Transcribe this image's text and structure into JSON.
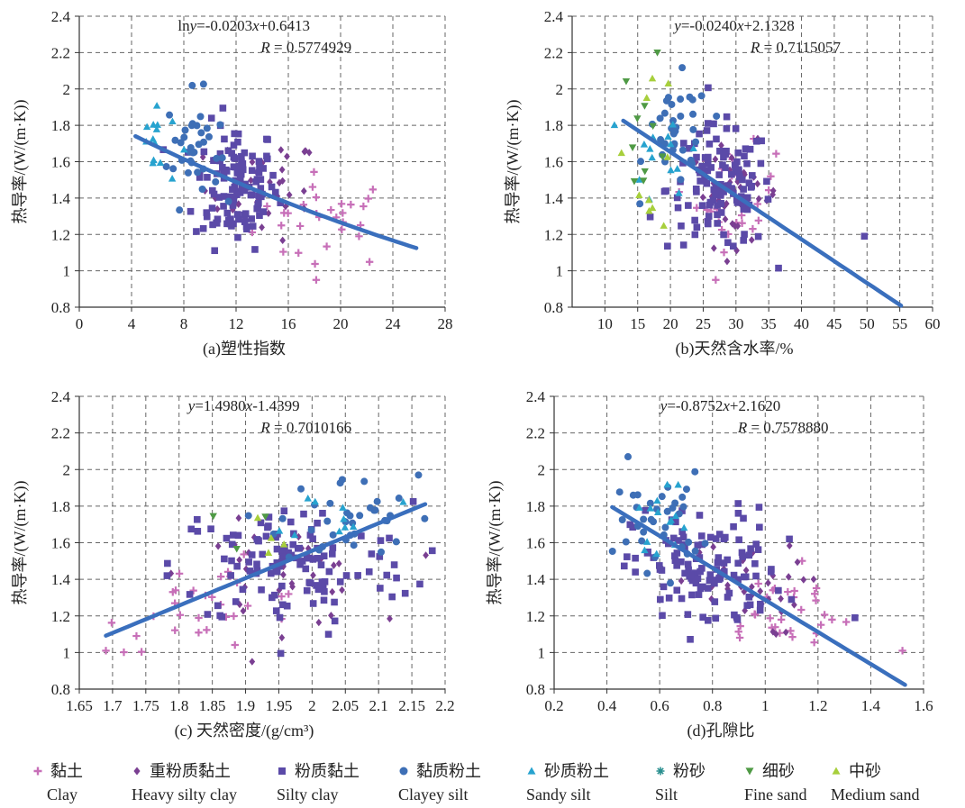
{
  "colors": {
    "clay": "#c76fb8",
    "heavy_silty_clay": "#7a3f92",
    "silty_clay": "#5b4aa8",
    "clayey_silt": "#3e6fb6",
    "sandy_silt": "#27a3cf",
    "silt": "#2a8f8f",
    "fine_sand": "#4f9a45",
    "medium_sand": "#a7cf3c",
    "fit_line": "#3a6fbd",
    "grid": "#666666"
  },
  "legend": [
    {
      "key": "clay",
      "cn": "黏土",
      "en": "Clay",
      "marker": "plus"
    },
    {
      "key": "heavy_silty_clay",
      "cn": "重粉质黏土",
      "en": "Heavy silty clay",
      "marker": "diamond"
    },
    {
      "key": "silty_clay",
      "cn": "粉质黏土",
      "en": "Silty clay",
      "marker": "square"
    },
    {
      "key": "clayey_silt",
      "cn": "黏质粉土",
      "en": "Clayey silt",
      "marker": "circle"
    },
    {
      "key": "sandy_silt",
      "cn": "砂质粉土",
      "en": "Sandy silt",
      "marker": "triangle"
    },
    {
      "key": "silt",
      "cn": "粉砂",
      "en": "Silt",
      "marker": "star"
    },
    {
      "key": "fine_sand",
      "cn": "细砂",
      "en": "Fine sand",
      "marker": "triangle-down"
    },
    {
      "key": "medium_sand",
      "cn": "中砂",
      "en": "Medium sand",
      "marker": "triangle"
    }
  ],
  "chart_data": [
    {
      "type": "scatter",
      "xlabel": "(a)塑性指数",
      "ylabel": "热导率/(W/(m·K))",
      "xlim": [
        0,
        28
      ],
      "ylim": [
        0.8,
        2.4
      ],
      "xticks": [
        "0",
        "4",
        "8",
        "12",
        "16",
        "20",
        "24",
        "28"
      ],
      "yticks": [
        "0.8",
        "1",
        "1.2",
        "1.4",
        "1.6",
        "1.8",
        "2",
        "2.2",
        "2.4"
      ],
      "equation": {
        "prefix": "ln",
        "y": "y",
        "mid": "=-0.0203",
        "x": "x",
        "suffix": "+0.6413"
      },
      "r_text": {
        "r": "R",
        "value": " = 0.5774929"
      },
      "fit": {
        "kind": "exp",
        "a": -0.0203,
        "b": 0.6413,
        "x_range": [
          4.3,
          25.8
        ]
      },
      "series": [
        {
          "key": "clay",
          "center": [
            19.0,
            1.28
          ],
          "spread": [
            2.8,
            0.13
          ],
          "n": 30
        },
        {
          "key": "heavy_silty_clay",
          "center": [
            14.0,
            1.45
          ],
          "spread": [
            2.2,
            0.14
          ],
          "n": 35
        },
        {
          "key": "silty_clay",
          "center": [
            12.0,
            1.47
          ],
          "spread": [
            1.6,
            0.17
          ],
          "n": 120
        },
        {
          "key": "clayey_silt",
          "center": [
            8.7,
            1.68
          ],
          "spread": [
            1.0,
            0.15
          ],
          "n": 35
        },
        {
          "key": "sandy_silt",
          "center": [
            5.8,
            1.7
          ],
          "spread": [
            0.8,
            0.12
          ],
          "n": 14
        }
      ]
    },
    {
      "type": "scatter",
      "xlabel": "(b)天然含水率/%",
      "ylabel": "热导率/(W/(m·K))",
      "xlim": [
        5,
        60
      ],
      "ylim": [
        0.8,
        2.4
      ],
      "xticks": [
        "10",
        "15",
        "20",
        "25",
        "30",
        "35",
        "40",
        "45",
        "50",
        "55",
        "60"
      ],
      "yticks": [
        "0.8",
        "1",
        "1.2",
        "1.4",
        "1.6",
        "1.8",
        "2",
        "2.2",
        "2.4"
      ],
      "equation": {
        "prefix": "",
        "y": "y",
        "mid": "=-0.0240",
        "x": "x",
        "suffix": "+2.1328"
      },
      "r_text": {
        "r": "R",
        "value": " = 0.7115057"
      },
      "fit": {
        "kind": "linear",
        "a": -0.024,
        "b": 2.1328,
        "x_range": [
          12.8,
          55.2
        ]
      },
      "series": [
        {
          "key": "clay",
          "center": [
            30.0,
            1.4
          ],
          "spread": [
            3.0,
            0.14
          ],
          "n": 30
        },
        {
          "key": "heavy_silty_clay",
          "center": [
            30.0,
            1.42
          ],
          "spread": [
            3.5,
            0.14
          ],
          "n": 35
        },
        {
          "key": "silty_clay",
          "center": [
            27.5,
            1.45
          ],
          "spread": [
            4.0,
            0.17
          ],
          "n": 120
        },
        {
          "key": "clayey_silt",
          "center": [
            21.0,
            1.75
          ],
          "spread": [
            2.5,
            0.15
          ],
          "n": 35
        },
        {
          "key": "sandy_silt",
          "center": [
            20.0,
            1.65
          ],
          "spread": [
            3.0,
            0.15
          ],
          "n": 14
        },
        {
          "key": "fine_sand",
          "center": [
            16.0,
            1.8
          ],
          "spread": [
            1.8,
            0.22
          ],
          "n": 10
        },
        {
          "key": "medium_sand",
          "center": [
            17.0,
            1.7
          ],
          "spread": [
            2.0,
            0.25
          ],
          "n": 10
        }
      ],
      "extra_points": [
        {
          "key": "silty_clay",
          "x": 49.6,
          "y": 1.19
        }
      ]
    },
    {
      "type": "scatter",
      "xlabel": "(c) 天然密度/(g/cm³)",
      "ylabel": "热导率/(W/(m·K))",
      "xlim": [
        1.65,
        2.2
      ],
      "ylim": [
        0.8,
        2.4
      ],
      "xticks": [
        "1.65",
        "1.7",
        "1.75",
        "1.8",
        "1.85",
        "1.9",
        "1.95",
        "2",
        "2.05",
        "2.1",
        "2.15",
        "2.2"
      ],
      "yticks": [
        "0.8",
        "1",
        "1.2",
        "1.4",
        "1.6",
        "1.8",
        "2",
        "2.2",
        "2.4"
      ],
      "equation": {
        "prefix": "",
        "y": "y",
        "mid": "=1.4980",
        "x": "x",
        "suffix": "-1.4399"
      },
      "r_text": {
        "r": "R",
        "value": " = 0.7010166"
      },
      "fit": {
        "kind": "linear",
        "a": 1.498,
        "b": -1.4399,
        "x_range": [
          1.69,
          2.17
        ]
      },
      "series": [
        {
          "key": "clay",
          "center": [
            1.85,
            1.25
          ],
          "spread": [
            0.08,
            0.12
          ],
          "n": 30
        },
        {
          "key": "heavy_silty_clay",
          "center": [
            1.95,
            1.42
          ],
          "spread": [
            0.07,
            0.14
          ],
          "n": 35
        },
        {
          "key": "silty_clay",
          "center": [
            1.97,
            1.48
          ],
          "spread": [
            0.09,
            0.17
          ],
          "n": 120
        },
        {
          "key": "clayey_silt",
          "center": [
            2.05,
            1.72
          ],
          "spread": [
            0.05,
            0.12
          ],
          "n": 35
        },
        {
          "key": "sandy_silt",
          "center": [
            2.05,
            1.76
          ],
          "spread": [
            0.04,
            0.08
          ],
          "n": 10
        },
        {
          "key": "fine_sand",
          "center": [
            1.93,
            1.68
          ],
          "spread": [
            0.03,
            0.06
          ],
          "n": 3
        },
        {
          "key": "medium_sand",
          "center": [
            1.92,
            1.7
          ],
          "spread": [
            0.04,
            0.08
          ],
          "n": 4
        }
      ],
      "extra_points": [
        {
          "key": "clayey_silt",
          "x": 2.16,
          "y": 1.97
        },
        {
          "key": "clay",
          "x": 1.69,
          "y": 1.01
        }
      ]
    },
    {
      "type": "scatter",
      "xlabel": "(d)孔隙比",
      "ylabel": "热导率/(W/(m·K))",
      "xlim": [
        0.2,
        1.6
      ],
      "ylim": [
        0.8,
        2.4
      ],
      "xticks": [
        "0.2",
        "0.4",
        "0.6",
        "0.8",
        "1",
        "1.2",
        "1.4",
        "1.6"
      ],
      "yticks": [
        "0.8",
        "1",
        "1.2",
        "1.4",
        "1.6",
        "1.8",
        "2",
        "2.2",
        "2.4"
      ],
      "equation": {
        "prefix": "",
        "y": "y",
        "mid": "=-0.8752",
        "x": "x",
        "suffix": "+2.1620"
      },
      "r_text": {
        "r": "R",
        "value": " = 0.7578880"
      },
      "fit": {
        "kind": "linear",
        "a": -0.8752,
        "b": 2.162,
        "x_range": [
          0.42,
          1.53
        ]
      },
      "series": [
        {
          "key": "clay",
          "center": [
            1.05,
            1.22
          ],
          "spread": [
            0.14,
            0.12
          ],
          "n": 30
        },
        {
          "key": "heavy_silty_clay",
          "center": [
            0.9,
            1.35
          ],
          "spread": [
            0.12,
            0.13
          ],
          "n": 35
        },
        {
          "key": "silty_clay",
          "center": [
            0.78,
            1.45
          ],
          "spread": [
            0.14,
            0.17
          ],
          "n": 120
        },
        {
          "key": "clayey_silt",
          "center": [
            0.6,
            1.72
          ],
          "spread": [
            0.08,
            0.13
          ],
          "n": 35
        },
        {
          "key": "sandy_silt",
          "center": [
            0.62,
            1.75
          ],
          "spread": [
            0.05,
            0.1
          ],
          "n": 14
        }
      ],
      "extra_points": [
        {
          "key": "clayey_silt",
          "x": 0.48,
          "y": 2.07
        },
        {
          "key": "silty_clay",
          "x": 1.34,
          "y": 1.19
        },
        {
          "key": "clay",
          "x": 1.52,
          "y": 1.01
        }
      ]
    }
  ]
}
